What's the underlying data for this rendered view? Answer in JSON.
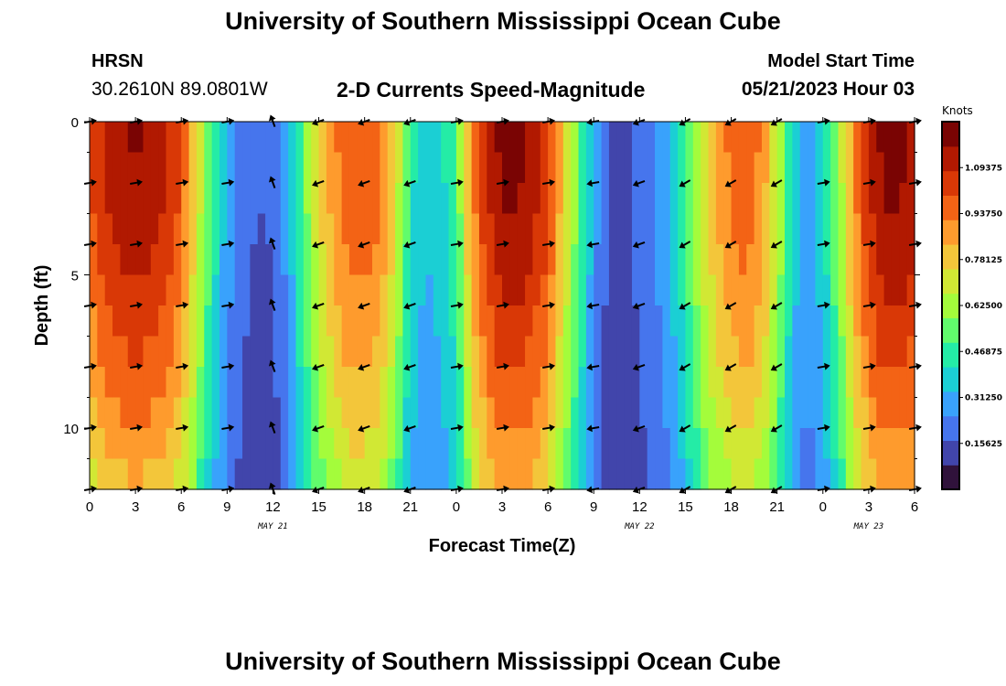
{
  "header": {
    "title": "University of Southern Mississippi Ocean Cube",
    "station": "HRSN",
    "coords": "30.2610N  89.0801W",
    "subtitle": "2-D Currents Speed-Magnitude",
    "model_label": "Model Start Time",
    "model_time": "05/21/2023 Hour 03"
  },
  "footer": {
    "title": "University of Southern Mississippi Ocean Cube"
  },
  "chart_data": {
    "type": "heatmap",
    "title": "2-D Currents Speed-Magnitude",
    "xlabel": "Forecast Time(Z)",
    "ylabel": "Depth (ft)",
    "x_range_hours": [
      0,
      54
    ],
    "y_range": [
      0,
      12
    ],
    "x_tick_labels": [
      "0",
      "3",
      "6",
      "9",
      "12",
      "15",
      "18",
      "21",
      "0",
      "3",
      "6",
      "9",
      "12",
      "15",
      "18",
      "21",
      "0",
      "3",
      "6"
    ],
    "y_ticks": [
      0,
      5,
      10
    ],
    "date_labels": [
      {
        "label": "MAY 21",
        "hour": 12
      },
      {
        "label": "MAY 22",
        "hour": 36
      },
      {
        "label": "MAY 23",
        "hour": 51
      }
    ],
    "colorbar": {
      "unit": "Knots",
      "range": [
        0.0,
        1.25
      ],
      "labels": [
        "1.09375",
        "0.93750",
        "0.78125",
        "0.62500",
        "0.46875",
        "0.31250",
        "0.15625"
      ],
      "label_values": [
        1.09375,
        0.9375,
        0.78125,
        0.625,
        0.46875,
        0.3125,
        0.15625
      ],
      "colors": [
        "#30123b",
        "#4145ab",
        "#4675ed",
        "#39a2fc",
        "#1bcfd4",
        "#24eca6",
        "#61fc6c",
        "#a4fc3b",
        "#d1e834",
        "#f3c63a",
        "#fe9b2d",
        "#f36315",
        "#d93806",
        "#b11901",
        "#7a0403"
      ]
    },
    "speed_profile": {
      "hours": [
        0,
        1,
        2,
        3,
        4,
        5,
        6,
        7,
        8,
        9,
        10,
        11,
        12,
        13,
        14,
        15,
        16,
        17,
        18,
        19,
        20,
        21,
        22,
        23,
        24,
        25,
        26,
        27,
        28,
        29,
        30,
        31,
        32,
        33,
        34,
        35,
        36,
        37,
        38,
        39,
        40,
        41,
        42,
        43,
        44,
        45,
        46,
        47,
        48,
        49,
        50,
        51,
        52,
        53,
        54
      ],
      "surface_knots": [
        1.0,
        1.1,
        1.15,
        1.18,
        1.15,
        1.1,
        1.0,
        0.75,
        0.5,
        0.3,
        0.2,
        0.17,
        0.18,
        0.3,
        0.55,
        0.75,
        0.9,
        1.0,
        1.0,
        0.95,
        0.75,
        0.45,
        0.35,
        0.4,
        0.5,
        0.9,
        1.1,
        1.2,
        1.2,
        1.15,
        1.05,
        0.8,
        0.55,
        0.3,
        0.15,
        0.15,
        0.2,
        0.25,
        0.35,
        0.5,
        0.7,
        0.85,
        0.95,
        1.0,
        0.9,
        0.7,
        0.4,
        0.3,
        0.4,
        0.6,
        0.9,
        1.1,
        1.2,
        1.2,
        1.15
      ]
    },
    "vectors": {
      "hours": [
        0,
        3,
        6,
        9,
        12,
        15,
        18,
        21,
        24,
        27,
        30,
        33,
        36,
        39,
        42,
        45,
        48,
        51,
        54
      ],
      "depths": [
        0,
        2,
        4,
        6,
        8,
        10,
        12
      ],
      "directions_deg": [
        10,
        10,
        10,
        10,
        110,
        200,
        200,
        200,
        10,
        10,
        10,
        190,
        200,
        210,
        210,
        210,
        10,
        10,
        10
      ]
    }
  }
}
